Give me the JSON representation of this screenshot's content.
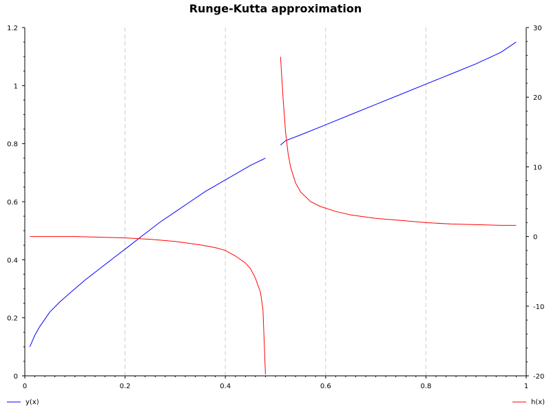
{
  "chart_data": {
    "type": "line",
    "title": "Runge-Kutta approximation",
    "xlabel": "",
    "ylabel": "",
    "xlim": [
      0,
      1
    ],
    "ylim": [
      0,
      1.2
    ],
    "y2lim": [
      -20,
      30
    ],
    "x_ticks": [
      "0",
      "0.2",
      "0.4",
      "0.6",
      "0.8",
      "1"
    ],
    "y_ticks": [
      "0",
      "0.2",
      "0.4",
      "0.6",
      "0.8",
      "1",
      "1.2"
    ],
    "y2_ticks": [
      "-20",
      "-10",
      "0",
      "10",
      "20",
      "30"
    ],
    "grid": "vertical dashed",
    "legend_placement": "bottom",
    "series": [
      {
        "name": "y(x)",
        "axis": "left",
        "color": "#0000ff",
        "segments": [
          [
            [
              0.01,
              0.1
            ],
            [
              0.02,
              0.14
            ],
            [
              0.03,
              0.17
            ],
            [
              0.04,
              0.195
            ],
            [
              0.05,
              0.22
            ],
            [
              0.07,
              0.255
            ],
            [
              0.09,
              0.285
            ],
            [
              0.12,
              0.33
            ],
            [
              0.15,
              0.37
            ],
            [
              0.18,
              0.41
            ],
            [
              0.21,
              0.45
            ],
            [
              0.24,
              0.49
            ],
            [
              0.27,
              0.53
            ],
            [
              0.3,
              0.565
            ],
            [
              0.33,
              0.6
            ],
            [
              0.36,
              0.635
            ],
            [
              0.39,
              0.665
            ],
            [
              0.42,
              0.695
            ],
            [
              0.45,
              0.725
            ],
            [
              0.48,
              0.75
            ]
          ],
          [
            [
              0.51,
              0.795
            ],
            [
              0.52,
              0.81
            ],
            [
              0.55,
              0.83
            ],
            [
              0.6,
              0.865
            ],
            [
              0.65,
              0.9
            ],
            [
              0.7,
              0.935
            ],
            [
              0.75,
              0.97
            ],
            [
              0.8,
              1.005
            ],
            [
              0.85,
              1.04
            ],
            [
              0.9,
              1.075
            ],
            [
              0.95,
              1.115
            ],
            [
              0.98,
              1.15
            ]
          ]
        ]
      },
      {
        "name": "h(x)",
        "axis": "right",
        "color": "#ff0000",
        "segments": [
          [
            [
              0.01,
              0.0
            ],
            [
              0.05,
              0.0
            ],
            [
              0.1,
              0.0
            ],
            [
              0.15,
              -0.1
            ],
            [
              0.2,
              -0.2
            ],
            [
              0.25,
              -0.4
            ],
            [
              0.3,
              -0.7
            ],
            [
              0.35,
              -1.2
            ],
            [
              0.38,
              -1.6
            ],
            [
              0.4,
              -2.0
            ],
            [
              0.42,
              -2.8
            ],
            [
              0.44,
              -3.8
            ],
            [
              0.45,
              -4.6
            ],
            [
              0.46,
              -6.0
            ],
            [
              0.47,
              -8.0
            ],
            [
              0.475,
              -10.5
            ],
            [
              0.48,
              -19.8
            ]
          ],
          [
            [
              0.51,
              25.8
            ],
            [
              0.515,
              20.0
            ],
            [
              0.52,
              15.0
            ],
            [
              0.525,
              12.0
            ],
            [
              0.53,
              10.0
            ],
            [
              0.54,
              7.7
            ],
            [
              0.55,
              6.4
            ],
            [
              0.57,
              5.0
            ],
            [
              0.59,
              4.3
            ],
            [
              0.62,
              3.6
            ],
            [
              0.65,
              3.1
            ],
            [
              0.7,
              2.6
            ],
            [
              0.75,
              2.3
            ],
            [
              0.8,
              2.0
            ],
            [
              0.85,
              1.8
            ],
            [
              0.9,
              1.7
            ],
            [
              0.95,
              1.6
            ],
            [
              0.98,
              1.6
            ]
          ]
        ]
      }
    ]
  }
}
